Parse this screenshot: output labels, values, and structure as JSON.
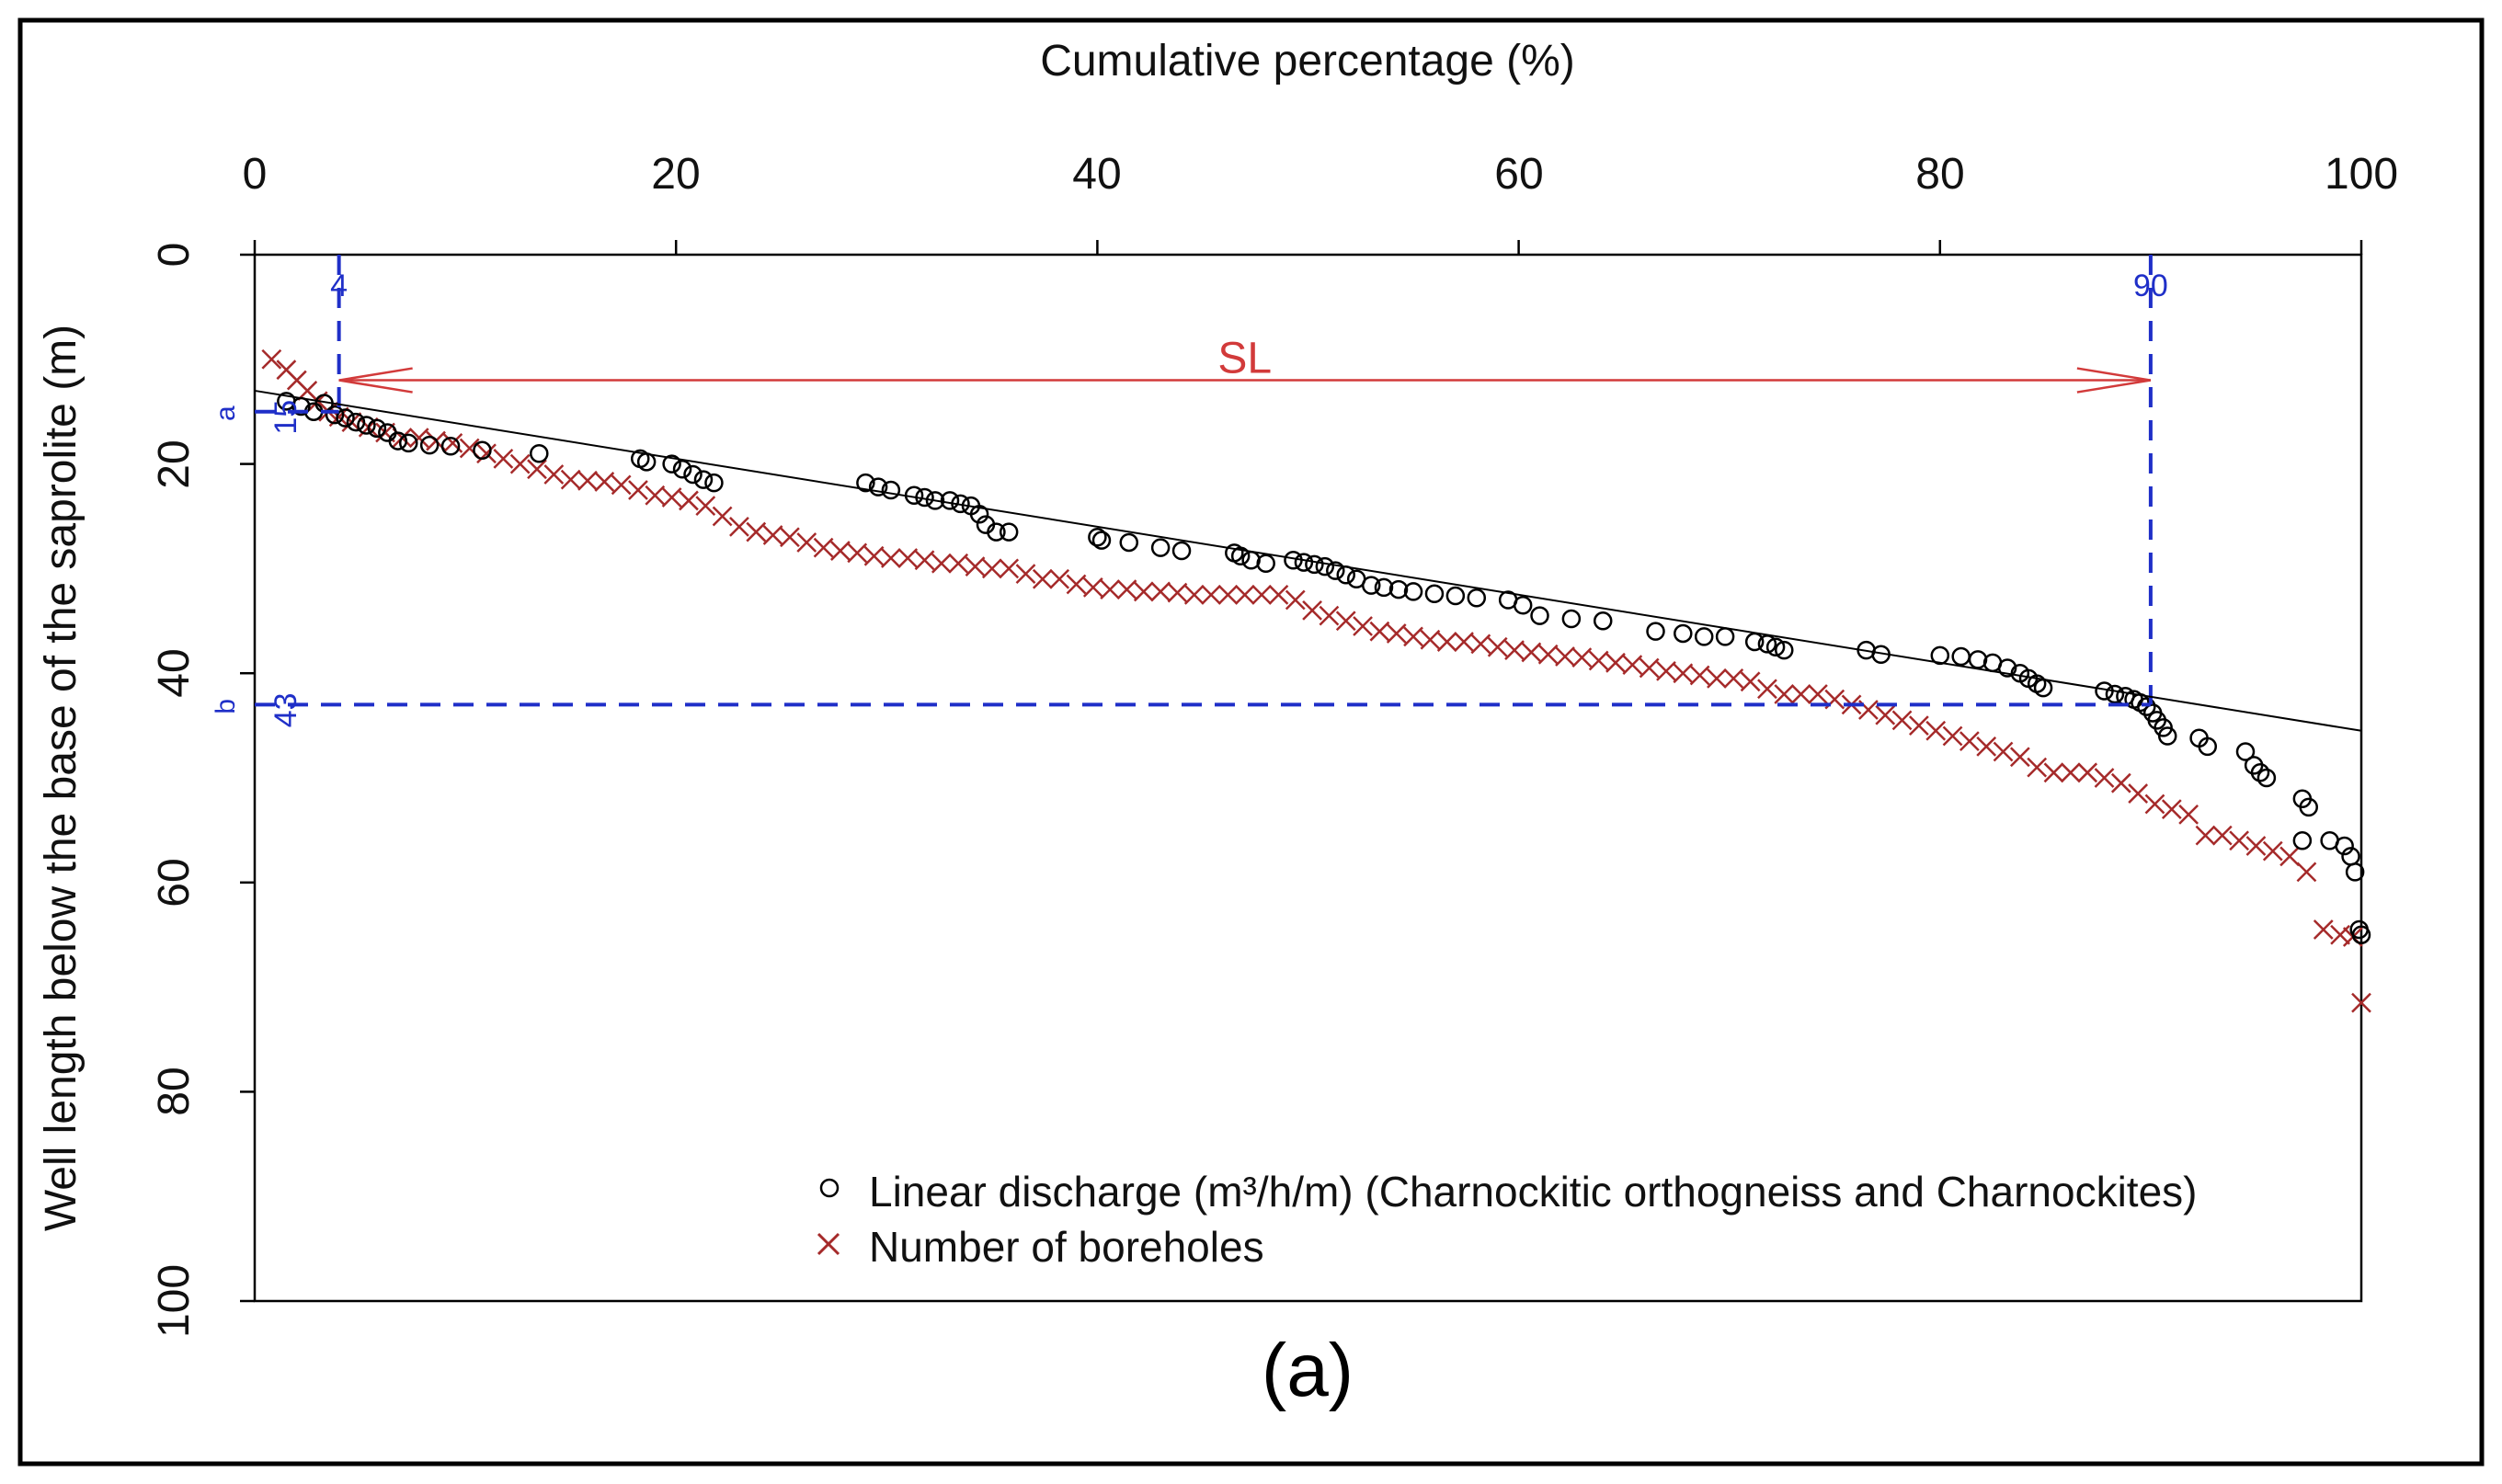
{
  "chart_data": {
    "type": "scatter",
    "panel_label": "(a)",
    "xlabel": "Cumulative percentage (%)",
    "ylabel": "Well length below the base of the saprolite (m)",
    "xlim": [
      0,
      100
    ],
    "ylim": [
      0,
      100
    ],
    "y_inverted": true,
    "x_axis_position": "top",
    "x_ticks": [
      0,
      20,
      40,
      60,
      80,
      100
    ],
    "y_ticks": [
      0,
      20,
      40,
      60,
      80,
      100
    ],
    "x_tick_labels": [
      "0",
      "20",
      "40",
      "60",
      "80",
      "100"
    ],
    "y_tick_labels": [
      "0",
      "20",
      "40",
      "60",
      "80",
      "100"
    ],
    "grid": false,
    "legend_position": "bottom-right",
    "series": [
      {
        "name": "Linear discharge (m³/h/m) (Charnockitic orthogneiss and Charnockites)",
        "marker": "open-circle",
        "color": "#000000",
        "points": [
          [
            1.5,
            14
          ],
          [
            2.2,
            14.5
          ],
          [
            2.8,
            15
          ],
          [
            3.3,
            14.2
          ],
          [
            3.8,
            15.3
          ],
          [
            4.3,
            15.6
          ],
          [
            4.8,
            16
          ],
          [
            5.3,
            16.3
          ],
          [
            5.8,
            16.6
          ],
          [
            6.3,
            17
          ],
          [
            6.8,
            17.8
          ],
          [
            7.3,
            18
          ],
          [
            8.3,
            18.2
          ],
          [
            9.3,
            18.3
          ],
          [
            10.8,
            18.7
          ],
          [
            13.5,
            19
          ],
          [
            18.3,
            19.5
          ],
          [
            18.6,
            19.8
          ],
          [
            19.8,
            20
          ],
          [
            20.3,
            20.5
          ],
          [
            20.8,
            21
          ],
          [
            21.3,
            21.5
          ],
          [
            21.8,
            21.8
          ],
          [
            29,
            21.8
          ],
          [
            29.6,
            22.2
          ],
          [
            30.2,
            22.5
          ],
          [
            31.3,
            23
          ],
          [
            31.8,
            23.2
          ],
          [
            32.3,
            23.5
          ],
          [
            33,
            23.5
          ],
          [
            33.5,
            23.8
          ],
          [
            34,
            24
          ],
          [
            34.4,
            24.8
          ],
          [
            34.7,
            25.8
          ],
          [
            35.2,
            26.5
          ],
          [
            35.8,
            26.5
          ],
          [
            40,
            27
          ],
          [
            40.2,
            27.3
          ],
          [
            41.5,
            27.5
          ],
          [
            43,
            28
          ],
          [
            44,
            28.3
          ],
          [
            46.5,
            28.5
          ],
          [
            46.8,
            28.8
          ],
          [
            47.3,
            29.2
          ],
          [
            48,
            29.5
          ],
          [
            49.3,
            29.2
          ],
          [
            49.8,
            29.4
          ],
          [
            50.3,
            29.6
          ],
          [
            50.8,
            29.8
          ],
          [
            51.3,
            30.2
          ],
          [
            51.8,
            30.6
          ],
          [
            52.3,
            31
          ],
          [
            53,
            31.6
          ],
          [
            53.6,
            31.8
          ],
          [
            54.3,
            32
          ],
          [
            55,
            32.2
          ],
          [
            56,
            32.4
          ],
          [
            57,
            32.6
          ],
          [
            58,
            32.8
          ],
          [
            59.5,
            33
          ],
          [
            60.2,
            33.5
          ],
          [
            61,
            34.5
          ],
          [
            62.5,
            34.8
          ],
          [
            64,
            35
          ],
          [
            66.5,
            36
          ],
          [
            67.8,
            36.2
          ],
          [
            68.8,
            36.5
          ],
          [
            69.8,
            36.5
          ],
          [
            71.2,
            37
          ],
          [
            71.8,
            37.2
          ],
          [
            72.2,
            37.5
          ],
          [
            72.6,
            37.8
          ],
          [
            76.5,
            37.8
          ],
          [
            77.2,
            38.2
          ],
          [
            80,
            38.3
          ],
          [
            81,
            38.4
          ],
          [
            81.8,
            38.7
          ],
          [
            82.5,
            39
          ],
          [
            83.2,
            39.5
          ],
          [
            83.8,
            40
          ],
          [
            84.2,
            40.5
          ],
          [
            84.6,
            41
          ],
          [
            84.9,
            41.4
          ],
          [
            87.8,
            41.7
          ],
          [
            88.3,
            42
          ],
          [
            88.8,
            42.2
          ],
          [
            89.2,
            42.5
          ],
          [
            89.5,
            42.8
          ],
          [
            89.8,
            43.2
          ],
          [
            90.1,
            43.8
          ],
          [
            90.3,
            44.5
          ],
          [
            90.6,
            45.2
          ],
          [
            90.8,
            46
          ],
          [
            92.3,
            46.2
          ],
          [
            92.7,
            47
          ],
          [
            94.5,
            47.5
          ],
          [
            94.9,
            48.8
          ],
          [
            95.2,
            49.5
          ],
          [
            95.5,
            50
          ],
          [
            97.2,
            52
          ],
          [
            97.5,
            52.8
          ],
          [
            97.2,
            56
          ],
          [
            98.5,
            56
          ],
          [
            99.2,
            56.5
          ],
          [
            99.5,
            57.5
          ],
          [
            99.7,
            59
          ],
          [
            99.9,
            64.5
          ],
          [
            100,
            65
          ]
        ]
      },
      {
        "name": "Number of boreholes",
        "marker": "x",
        "color": "#A52A2A",
        "points": [
          [
            0.8,
            10
          ],
          [
            1.5,
            11
          ],
          [
            2,
            12
          ],
          [
            2.5,
            13
          ],
          [
            3,
            14
          ],
          [
            3.5,
            15
          ],
          [
            4,
            15.5
          ],
          [
            4.6,
            16
          ],
          [
            5.4,
            16.5
          ],
          [
            6.2,
            17
          ],
          [
            7,
            17.5
          ],
          [
            7.8,
            17.5
          ],
          [
            8.6,
            17.8
          ],
          [
            9.4,
            18
          ],
          [
            10.2,
            18.5
          ],
          [
            11,
            19
          ],
          [
            11.8,
            19.5
          ],
          [
            12.6,
            20
          ],
          [
            13.4,
            20.5
          ],
          [
            14.2,
            21
          ],
          [
            15,
            21.5
          ],
          [
            15.8,
            21.6
          ],
          [
            16.6,
            21.7
          ],
          [
            17.4,
            22
          ],
          [
            18.2,
            22.5
          ],
          [
            19,
            23
          ],
          [
            19.8,
            23.2
          ],
          [
            20.6,
            23.5
          ],
          [
            21.4,
            24
          ],
          [
            22.2,
            25
          ],
          [
            23,
            26
          ],
          [
            23.8,
            26.5
          ],
          [
            24.6,
            26.8
          ],
          [
            25.4,
            27
          ],
          [
            26.2,
            27.5
          ],
          [
            27,
            28
          ],
          [
            27.8,
            28.3
          ],
          [
            28.6,
            28.5
          ],
          [
            29.4,
            28.8
          ],
          [
            30.2,
            29
          ],
          [
            31,
            29
          ],
          [
            31.8,
            29.2
          ],
          [
            32.6,
            29.5
          ],
          [
            33.4,
            29.5
          ],
          [
            34.2,
            29.8
          ],
          [
            35,
            30
          ],
          [
            35.8,
            30
          ],
          [
            36.6,
            30.5
          ],
          [
            37.4,
            31
          ],
          [
            38.2,
            31
          ],
          [
            39,
            31.5
          ],
          [
            39.8,
            31.8
          ],
          [
            40.6,
            32
          ],
          [
            41.4,
            32
          ],
          [
            42.2,
            32.2
          ],
          [
            43,
            32.2
          ],
          [
            43.8,
            32.3
          ],
          [
            44.6,
            32.5
          ],
          [
            45.4,
            32.5
          ],
          [
            46.2,
            32.5
          ],
          [
            47,
            32.5
          ],
          [
            47.8,
            32.5
          ],
          [
            48.6,
            32.5
          ],
          [
            49.4,
            33
          ],
          [
            50.2,
            34
          ],
          [
            51,
            34.5
          ],
          [
            51.8,
            35
          ],
          [
            52.6,
            35.5
          ],
          [
            53.4,
            36
          ],
          [
            54.2,
            36.2
          ],
          [
            55,
            36.5
          ],
          [
            55.8,
            36.8
          ],
          [
            56.6,
            37
          ],
          [
            57.4,
            37
          ],
          [
            58.2,
            37.2
          ],
          [
            59,
            37.5
          ],
          [
            59.8,
            37.8
          ],
          [
            60.6,
            38
          ],
          [
            61.4,
            38.2
          ],
          [
            62.2,
            38.4
          ],
          [
            63,
            38.5
          ],
          [
            63.8,
            38.8
          ],
          [
            64.6,
            39
          ],
          [
            65.4,
            39.2
          ],
          [
            66.2,
            39.5
          ],
          [
            67,
            39.8
          ],
          [
            67.8,
            40
          ],
          [
            68.6,
            40.2
          ],
          [
            69.4,
            40.5
          ],
          [
            70.2,
            40.5
          ],
          [
            71,
            40.8
          ],
          [
            71.8,
            41.5
          ],
          [
            72.6,
            42
          ],
          [
            73.4,
            42
          ],
          [
            74.2,
            42
          ],
          [
            75,
            42.5
          ],
          [
            75.8,
            43
          ],
          [
            76.6,
            43.5
          ],
          [
            77.4,
            44
          ],
          [
            78.2,
            44.5
          ],
          [
            79,
            45
          ],
          [
            79.8,
            45.5
          ],
          [
            80.6,
            46
          ],
          [
            81.4,
            46.5
          ],
          [
            82.2,
            47
          ],
          [
            83,
            47.5
          ],
          [
            83.8,
            48
          ],
          [
            84.6,
            49
          ],
          [
            85.4,
            49.5
          ],
          [
            86.2,
            49.5
          ],
          [
            87,
            49.5
          ],
          [
            87.8,
            50
          ],
          [
            88.6,
            50.5
          ],
          [
            89.4,
            51.5
          ],
          [
            90.2,
            52.5
          ],
          [
            91,
            53
          ],
          [
            91.8,
            53.5
          ],
          [
            92.6,
            55.5
          ],
          [
            93.4,
            55.5
          ],
          [
            94.2,
            56
          ],
          [
            95,
            56.5
          ],
          [
            95.8,
            57
          ],
          [
            96.6,
            57.5
          ],
          [
            97.4,
            59
          ],
          [
            98.2,
            64.5
          ],
          [
            99,
            65
          ],
          [
            99.6,
            65.2
          ],
          [
            100,
            71.5
          ]
        ]
      }
    ],
    "trendline": {
      "x": [
        0,
        100
      ],
      "y": [
        13,
        45.5
      ]
    },
    "annotations": {
      "sl_label": "SL",
      "sl_x_range": [
        4,
        90
      ],
      "sl_y": 12,
      "x_marker_left": {
        "value": 4,
        "label": "4"
      },
      "x_marker_right": {
        "value": 90,
        "label": "90"
      },
      "y_marker_a": {
        "value": 15,
        "label": "15",
        "letter": "a"
      },
      "y_marker_b": {
        "value": 43,
        "label": "43",
        "letter": "b"
      },
      "marker_color": "#1f2fc8",
      "arrow_color": "#d23a3a"
    }
  }
}
